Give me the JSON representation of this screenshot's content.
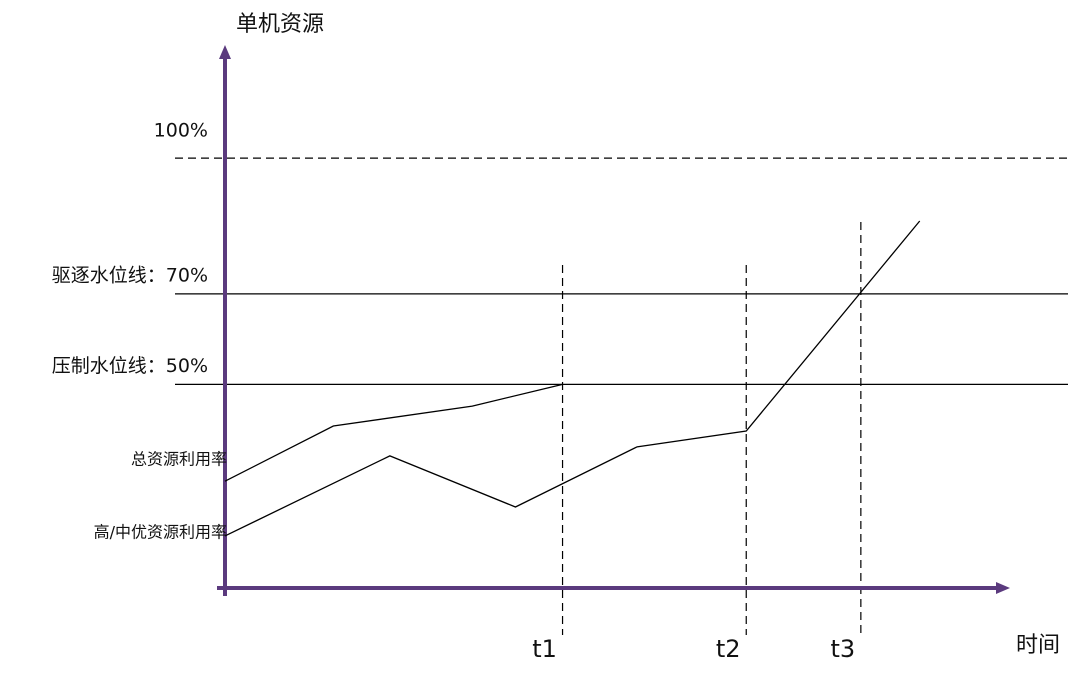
{
  "chart_data": {
    "type": "line",
    "y_label": "单机资源",
    "x_label": "时间",
    "xlim": [
      0,
      100
    ],
    "ylim": [
      5,
      125
    ],
    "xticks": [
      {
        "value": 43,
        "label": "t1"
      },
      {
        "value": 66.4,
        "label": "t2"
      },
      {
        "value": 81,
        "label": "t3"
      }
    ],
    "yticks": [
      {
        "value": 100,
        "label": "100%"
      },
      {
        "value": 70,
        "label": "驱逐水位线：70%"
      },
      {
        "value": 50,
        "label": "压制水位线：50%"
      }
    ],
    "ytick_line_styles": [
      "dashed",
      "solid",
      "solid"
    ],
    "axis_color": "#5b3a7e",
    "series": [
      {
        "name": "总资源利用率",
        "color": "#000000",
        "x": [
          0,
          13.8,
          31.5,
          43
        ],
        "values": [
          28.6,
          40.8,
          45.2,
          50
        ]
      },
      {
        "name": "高/中优资源利用率",
        "color": "#000000",
        "x": [
          0,
          21,
          37,
          52.5,
          66.4,
          88.5
        ],
        "values": [
          16.5,
          34.2,
          22.9,
          36.2,
          39.7,
          86.1
        ]
      }
    ]
  }
}
